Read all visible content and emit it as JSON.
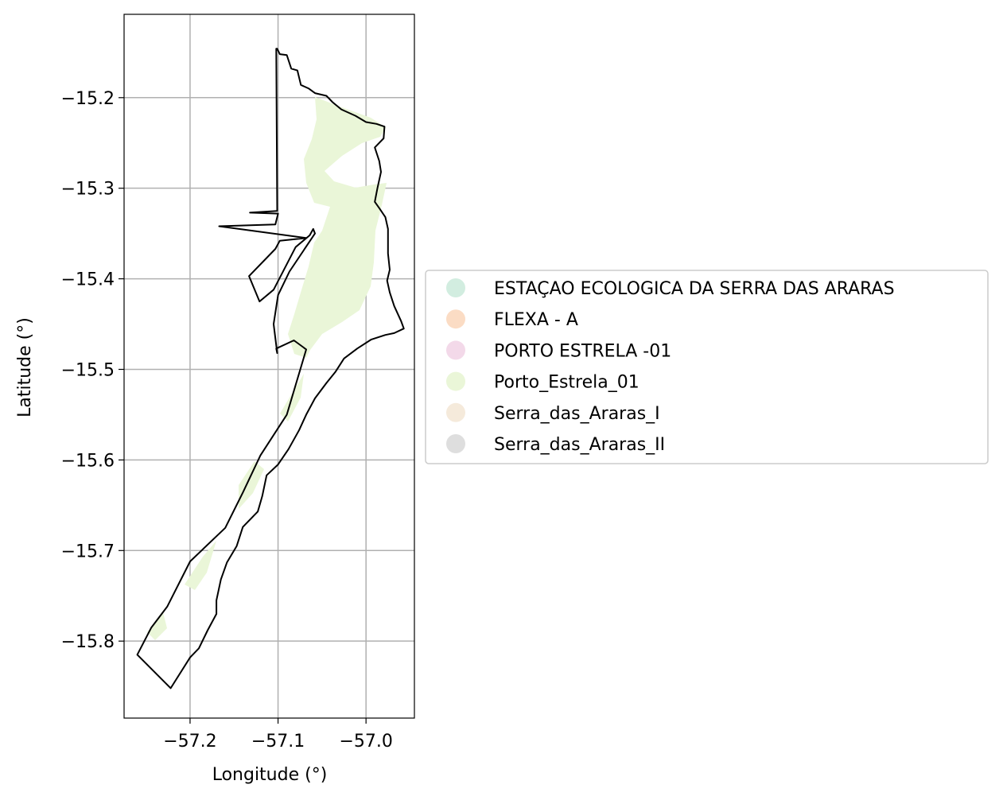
{
  "chart_data": {
    "type": "map",
    "xlabel": "Longitude (°)",
    "ylabel": "Latitude (°)",
    "xlim": [
      -57.275,
      -56.945
    ],
    "ylim": [
      -15.885,
      -15.108
    ],
    "xticks": [
      {
        "value": -57.2,
        "label": "−57.2"
      },
      {
        "value": -57.1,
        "label": "−57.1"
      },
      {
        "value": -57.0,
        "label": "−57.0"
      }
    ],
    "yticks": [
      {
        "value": -15.2,
        "label": "−15.2"
      },
      {
        "value": -15.3,
        "label": "−15.3"
      },
      {
        "value": -15.4,
        "label": "−15.4"
      },
      {
        "value": -15.5,
        "label": "−15.5"
      },
      {
        "value": -15.6,
        "label": "−15.6"
      },
      {
        "value": -15.7,
        "label": "−15.7"
      },
      {
        "value": -15.8,
        "label": "−15.8"
      }
    ],
    "grid": true,
    "legend_position": "center-right outside",
    "legend": [
      {
        "label": "ESTAÇAO ECOLOGICA DA SERRA DAS ARARAS",
        "color": "#d2ede0"
      },
      {
        "label": "FLEXA - A",
        "color": "#fbdcc4"
      },
      {
        "label": "PORTO ESTRELA -01",
        "color": "#f3d9e9"
      },
      {
        "label": "Porto_Estrela_01",
        "color": "#eaf6d8"
      },
      {
        "label": "Serra_das_Araras_I",
        "color": "#f5eadb"
      },
      {
        "label": "Serra_das_Araras_II",
        "color": "#dedede"
      }
    ],
    "boundary_outline": [
      [
        -57.101,
        -15.146
      ],
      [
        -57.098,
        -15.152
      ],
      [
        -57.09,
        -15.153
      ],
      [
        -57.085,
        -15.168
      ],
      [
        -57.078,
        -15.17
      ],
      [
        -57.074,
        -15.186
      ],
      [
        -57.065,
        -15.19
      ],
      [
        -57.058,
        -15.195
      ],
      [
        -57.045,
        -15.198
      ],
      [
        -57.038,
        -15.205
      ],
      [
        -57.028,
        -15.213
      ],
      [
        -57.012,
        -15.22
      ],
      [
        -57.0,
        -15.227
      ],
      [
        -56.988,
        -15.229
      ],
      [
        -56.979,
        -15.232
      ],
      [
        -56.98,
        -15.245
      ],
      [
        -56.99,
        -15.255
      ],
      [
        -56.985,
        -15.27
      ],
      [
        -56.983,
        -15.282
      ],
      [
        -56.987,
        -15.3
      ],
      [
        -56.99,
        -15.315
      ],
      [
        -56.985,
        -15.322
      ],
      [
        -56.978,
        -15.332
      ],
      [
        -56.975,
        -15.345
      ],
      [
        -56.975,
        -15.372
      ],
      [
        -56.973,
        -15.39
      ],
      [
        -56.976,
        -15.402
      ],
      [
        -56.973,
        -15.415
      ],
      [
        -56.968,
        -15.43
      ],
      [
        -56.96,
        -15.447
      ],
      [
        -56.957,
        -15.455
      ],
      [
        -56.968,
        -15.46
      ],
      [
        -56.978,
        -15.462
      ],
      [
        -56.994,
        -15.467
      ],
      [
        -57.01,
        -15.477
      ],
      [
        -57.025,
        -15.488
      ],
      [
        -57.035,
        -15.503
      ],
      [
        -57.045,
        -15.515
      ],
      [
        -57.058,
        -15.532
      ],
      [
        -57.068,
        -15.55
      ],
      [
        -57.076,
        -15.567
      ],
      [
        -57.088,
        -15.588
      ],
      [
        -57.1,
        -15.605
      ],
      [
        -57.113,
        -15.617
      ],
      [
        -57.118,
        -15.64
      ],
      [
        -57.123,
        -15.657
      ],
      [
        -57.14,
        -15.674
      ],
      [
        -57.147,
        -15.695
      ],
      [
        -57.158,
        -15.713
      ],
      [
        -57.165,
        -15.732
      ],
      [
        -57.17,
        -15.755
      ],
      [
        -57.17,
        -15.77
      ],
      [
        -57.18,
        -15.788
      ],
      [
        -57.19,
        -15.808
      ],
      [
        -57.2,
        -15.818
      ],
      [
        -57.222,
        -15.852
      ],
      [
        -57.26,
        -15.815
      ],
      [
        -57.244,
        -15.785
      ],
      [
        -57.226,
        -15.762
      ],
      [
        -57.2,
        -15.712
      ],
      [
        -57.16,
        -15.675
      ],
      [
        -57.14,
        -15.636
      ],
      [
        -57.12,
        -15.595
      ],
      [
        -57.09,
        -15.55
      ],
      [
        -57.068,
        -15.478
      ],
      [
        -57.082,
        -15.468
      ],
      [
        -57.102,
        -15.477
      ],
      [
        -57.101,
        -15.482
      ],
      [
        -57.105,
        -15.45
      ],
      [
        -57.1,
        -15.418
      ],
      [
        -57.087,
        -15.392
      ],
      [
        -57.058,
        -15.35
      ],
      [
        -57.06,
        -15.345
      ],
      [
        -57.064,
        -15.352
      ],
      [
        -57.08,
        -15.365
      ],
      [
        -57.105,
        -15.412
      ],
      [
        -57.121,
        -15.425
      ],
      [
        -57.133,
        -15.397
      ],
      [
        -57.103,
        -15.367
      ],
      [
        -57.098,
        -15.358
      ],
      [
        -57.068,
        -15.355
      ],
      [
        -57.167,
        -15.342
      ],
      [
        -57.103,
        -15.34
      ],
      [
        -57.1,
        -15.328
      ],
      [
        -57.132,
        -15.327
      ],
      [
        -57.101,
        -15.325
      ],
      [
        -57.102,
        -15.146
      ]
    ],
    "fill_region": "Porto_Estrela_01"
  }
}
